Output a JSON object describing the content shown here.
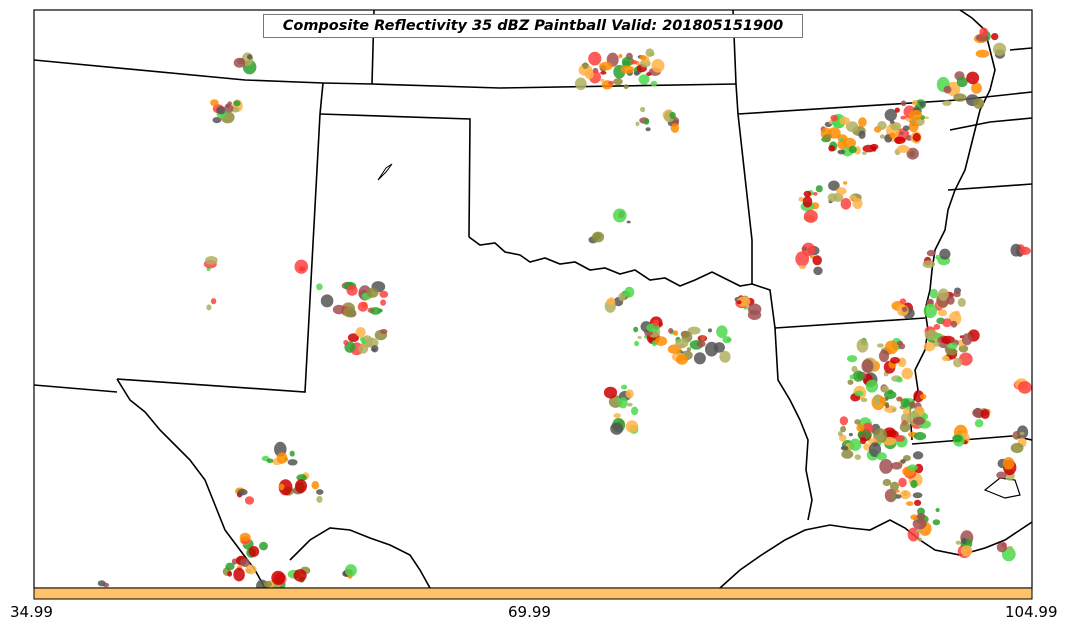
{
  "title": "Composite Reflectivity 35 dBZ Paintball Valid: 201805151900",
  "colorbar": {
    "tick_labels": [
      "34.99",
      "69.99",
      "104.99"
    ],
    "fill_color": "#fdc26a"
  },
  "colors": {
    "state_lines": "#000000",
    "frame": "#000000",
    "paintball_palette": [
      "#ff4040",
      "#cc0000",
      "#ff8c00",
      "#ffb347",
      "#4cd94c",
      "#2aa02a",
      "#8c8c3c",
      "#a05050",
      "#555555",
      "#b0b060"
    ]
  }
}
